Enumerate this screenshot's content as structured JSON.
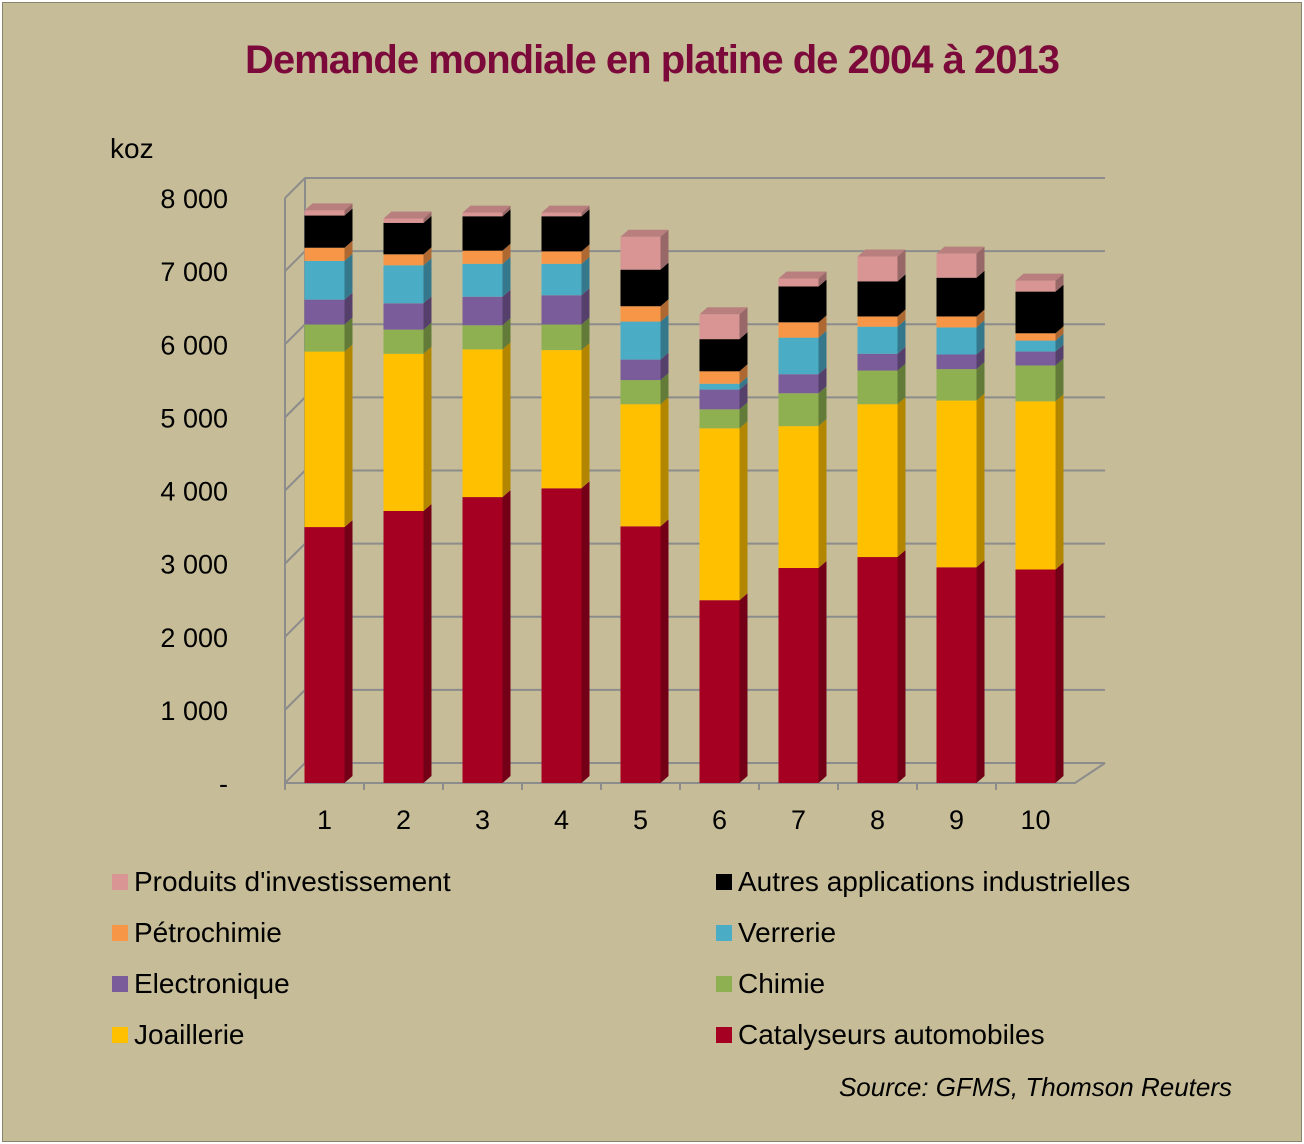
{
  "chart_data": {
    "type": "bar",
    "stacked": true,
    "three_d": true,
    "title": "Demande mondiale en platine de 2004  à 2013",
    "ylabel": "koz",
    "xlabel": "",
    "ylim": [
      0,
      8000
    ],
    "yticks": [
      "-",
      "1 000",
      "2 000",
      "3 000",
      "4 000",
      "5 000",
      "6 000",
      "7 000",
      "8 000"
    ],
    "categories": [
      "1",
      "2",
      "3",
      "4",
      "5",
      "6",
      "7",
      "8",
      "9",
      "10"
    ],
    "grid": true,
    "legend_placement": "bottom",
    "series": [
      {
        "name": "Catalyseurs automobiles",
        "color": "#A50021",
        "values": [
          3500,
          3720,
          3910,
          4030,
          3510,
          2500,
          2940,
          3090,
          2950,
          2920
        ]
      },
      {
        "name": "Joaillerie",
        "color": "#FFC000",
        "values": [
          2400,
          2150,
          2020,
          1890,
          1670,
          2350,
          1940,
          2090,
          2280,
          2300
        ]
      },
      {
        "name": "Chimie",
        "color": "#8EB050",
        "values": [
          370,
          330,
          330,
          350,
          330,
          260,
          450,
          460,
          430,
          490
        ]
      },
      {
        "name": "Electronique",
        "color": "#7A5C9A",
        "values": [
          340,
          360,
          390,
          400,
          280,
          270,
          260,
          230,
          200,
          190
        ]
      },
      {
        "name": "Verrerie",
        "color": "#4BACC6",
        "values": [
          530,
          520,
          450,
          430,
          520,
          80,
          500,
          370,
          370,
          150
        ]
      },
      {
        "name": "Pétrochimie",
        "color": "#F79646",
        "values": [
          180,
          150,
          180,
          170,
          210,
          170,
          210,
          140,
          150,
          100
        ]
      },
      {
        "name": "Autres applications industrielles",
        "color": "#000000",
        "values": [
          440,
          430,
          470,
          480,
          500,
          440,
          490,
          480,
          530,
          570
        ]
      },
      {
        "name": "Produits d'investissement",
        "color": "#D99594",
        "values": [
          70,
          60,
          50,
          50,
          450,
          340,
          110,
          340,
          330,
          150
        ]
      }
    ],
    "legend_order": [
      7,
      6,
      5,
      4,
      3,
      2,
      1,
      0
    ],
    "source": "Source: GFMS,  Thomson Reuters"
  }
}
